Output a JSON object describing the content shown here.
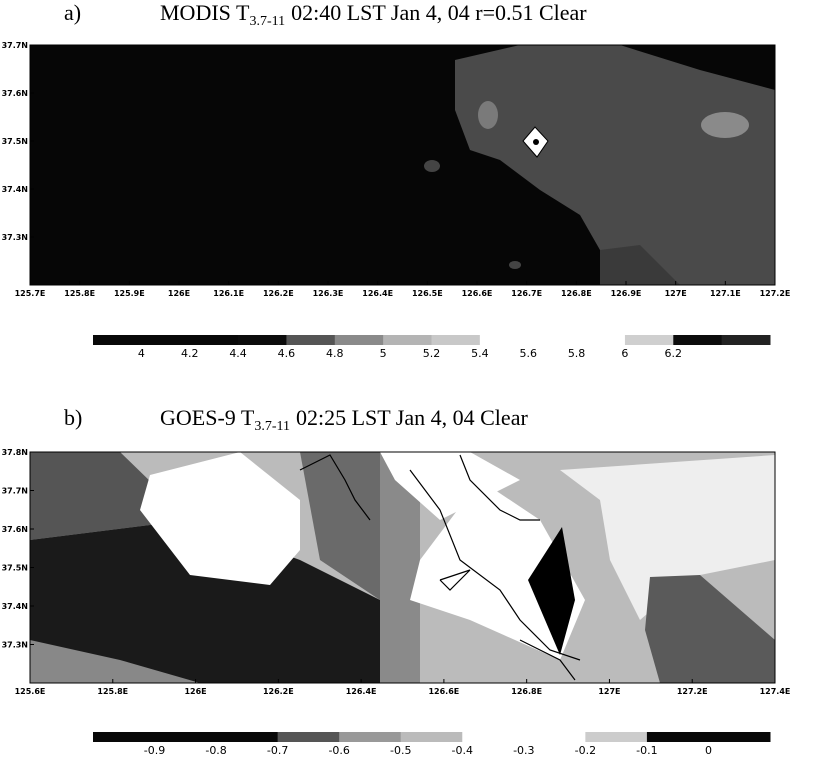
{
  "chart_data": [
    {
      "type": "contour",
      "panel_label": "a)",
      "title_prefix": "MODIS T",
      "title_subscript": "3.7-11",
      "title_suffix": "02:40 LST Jan 4, 04 r=0.51 Clear",
      "xlim": [
        125.7,
        127.2
      ],
      "ylim": [
        37.2,
        37.7
      ],
      "xticks": [
        {
          "value": 125.7,
          "label": "125.7E"
        },
        {
          "value": 125.8,
          "label": "125.8E"
        },
        {
          "value": 125.9,
          "label": "125.9E"
        },
        {
          "value": 126,
          "label": "126E"
        },
        {
          "value": 126.1,
          "label": "126.1E"
        },
        {
          "value": 126.2,
          "label": "126.2E"
        },
        {
          "value": 126.3,
          "label": "126.3E"
        },
        {
          "value": 126.4,
          "label": "126.4E"
        },
        {
          "value": 126.5,
          "label": "126.5E"
        },
        {
          "value": 126.6,
          "label": "126.6E"
        },
        {
          "value": 126.7,
          "label": "126.7E"
        },
        {
          "value": 126.8,
          "label": "126.8E"
        },
        {
          "value": 126.9,
          "label": "126.9E"
        },
        {
          "value": 127,
          "label": "127E"
        },
        {
          "value": 127.1,
          "label": "127.1E"
        },
        {
          "value": 127.2,
          "label": "127.2E"
        }
      ],
      "yticks": [
        {
          "value": 37.3,
          "label": "37.3N"
        },
        {
          "value": 37.4,
          "label": "37.4N"
        },
        {
          "value": 37.5,
          "label": "37.5N"
        },
        {
          "value": 37.6,
          "label": "37.6N"
        },
        {
          "value": 37.7,
          "label": "37.7N"
        }
      ],
      "colorbar": {
        "levels": [
          4,
          4.2,
          4.4,
          4.6,
          4.8,
          5,
          5.2,
          5.4,
          5.6,
          5.8,
          6,
          6.2
        ],
        "colors": [
          "#080808",
          "#080808",
          "#080808",
          "#0c0c0c",
          "#555555",
          "#8a8a8a",
          "#b4b4b4",
          "#c8c8c8",
          "#ffffff",
          "#ffffff",
          "#ffffff",
          "#cfcfcf",
          "#0c0c0c",
          "#222222"
        ]
      }
    },
    {
      "type": "contour",
      "panel_label": "b)",
      "title_prefix": "GOES-9 T",
      "title_subscript": "3.7-11",
      "title_suffix": "02:25 LST Jan 4, 04 Clear",
      "xlim": [
        125.6,
        127.4
      ],
      "ylim": [
        37.2,
        37.8
      ],
      "xticks": [
        {
          "value": 125.6,
          "label": "125.6E"
        },
        {
          "value": 125.8,
          "label": "125.8E"
        },
        {
          "value": 126,
          "label": "126E"
        },
        {
          "value": 126.2,
          "label": "126.2E"
        },
        {
          "value": 126.4,
          "label": "126.4E"
        },
        {
          "value": 126.6,
          "label": "126.6E"
        },
        {
          "value": 126.8,
          "label": "126.8E"
        },
        {
          "value": 127,
          "label": "127E"
        },
        {
          "value": 127.2,
          "label": "127.2E"
        },
        {
          "value": 127.4,
          "label": "127.4E"
        }
      ],
      "yticks": [
        {
          "value": 37.3,
          "label": "37.3N"
        },
        {
          "value": 37.4,
          "label": "37.4N"
        },
        {
          "value": 37.5,
          "label": "37.5N"
        },
        {
          "value": 37.6,
          "label": "37.6N"
        },
        {
          "value": 37.7,
          "label": "37.7N"
        },
        {
          "value": 37.8,
          "label": "37.8N"
        }
      ],
      "colorbar": {
        "levels": [
          -0.9,
          -0.8,
          -0.7,
          -0.6,
          -0.5,
          -0.4,
          -0.3,
          -0.2,
          -0.1,
          0
        ],
        "colors": [
          "#080808",
          "#080808",
          "#080808",
          "#555555",
          "#999999",
          "#bbbbbb",
          "#ffffff",
          "#ffffff",
          "#cccccc",
          "#080808",
          "#080808"
        ]
      }
    }
  ]
}
